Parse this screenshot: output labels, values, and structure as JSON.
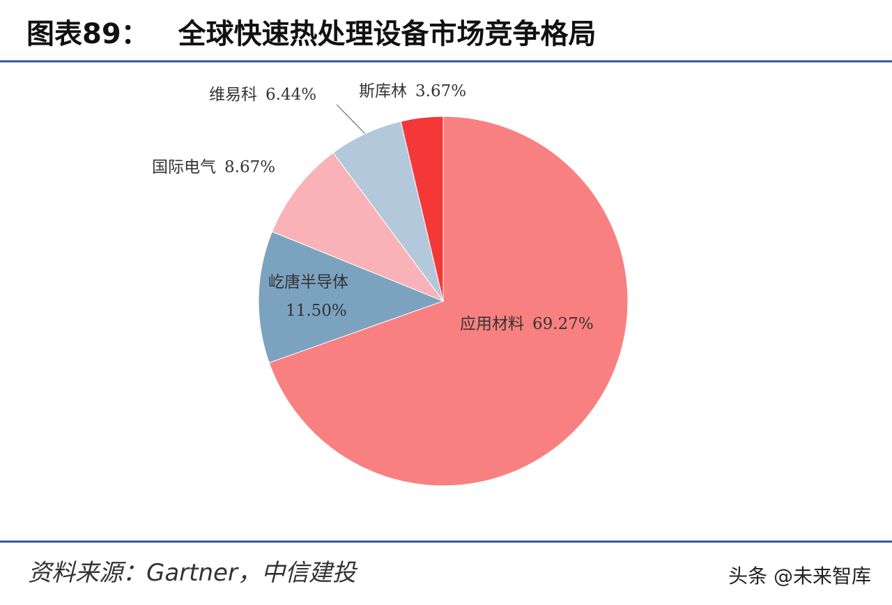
{
  "chart_data": {
    "type": "pie",
    "title": "图表89：   全球快速热处理设备市场竞争格局",
    "categories": [
      "应用材料",
      "屹唐半导体",
      "国际电气",
      "维易科",
      "斯库林"
    ],
    "values": [
      69.27,
      11.5,
      8.67,
      6.44,
      3.67
    ],
    "value_labels": [
      "69.27%",
      "11.50%",
      "8.67%",
      "6.44%",
      "3.67%"
    ],
    "colors": [
      "#f98080",
      "#7ba3c0",
      "#f9b3b8",
      "#b3c8da",
      "#f43838"
    ]
  },
  "source": "资料来源：Gartner，中信建投",
  "watermark": "头条 @未来智库"
}
